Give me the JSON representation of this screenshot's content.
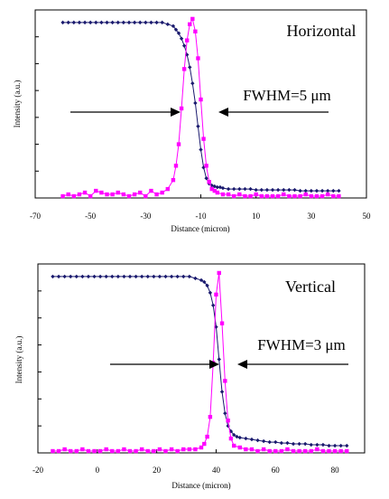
{
  "chart_data": [
    {
      "type": "line",
      "title": "Horizontal",
      "xlabel": "Distance (micron)",
      "ylabel": "Intensity (a.u.)",
      "xlim": [
        -70,
        50
      ],
      "ylim": [
        0,
        1.05
      ],
      "xticks": [
        -70,
        -50,
        -30,
        -10,
        10,
        30,
        50
      ],
      "yticks_labeled": false,
      "grid": false,
      "annotation": "FWHM=5 μm",
      "series": [
        {
          "color": "#1a1a6e",
          "marker": "diamond",
          "x": [
            -60,
            -58,
            -56,
            -54,
            -52,
            -50,
            -48,
            -46,
            -44,
            -42,
            -40,
            -38,
            -36,
            -34,
            -32,
            -30,
            -28,
            -26,
            -24,
            -22,
            -20,
            -19,
            -18,
            -17,
            -16,
            -15,
            -14,
            -13,
            -12,
            -11,
            -10,
            -9,
            -8,
            -7,
            -6,
            -5,
            -4,
            -3,
            -2,
            0,
            2,
            4,
            6,
            8,
            10,
            12,
            14,
            16,
            18,
            20,
            22,
            24,
            26,
            28,
            30,
            32,
            34,
            36,
            38,
            40
          ],
          "y": [
            0.98,
            0.98,
            0.98,
            0.98,
            0.98,
            0.98,
            0.98,
            0.98,
            0.98,
            0.98,
            0.98,
            0.98,
            0.98,
            0.98,
            0.98,
            0.98,
            0.98,
            0.98,
            0.98,
            0.97,
            0.96,
            0.94,
            0.92,
            0.89,
            0.85,
            0.8,
            0.73,
            0.64,
            0.53,
            0.4,
            0.27,
            0.17,
            0.11,
            0.08,
            0.07,
            0.065,
            0.06,
            0.06,
            0.055,
            0.05,
            0.05,
            0.05,
            0.05,
            0.05,
            0.045,
            0.045,
            0.045,
            0.045,
            0.045,
            0.045,
            0.045,
            0.045,
            0.04,
            0.04,
            0.04,
            0.04,
            0.04,
            0.04,
            0.04,
            0.04
          ]
        },
        {
          "color": "#ff00ff",
          "marker": "square",
          "x": [
            -60,
            -58,
            -56,
            -54,
            -52,
            -50,
            -48,
            -46,
            -44,
            -42,
            -40,
            -38,
            -36,
            -34,
            -32,
            -30,
            -28,
            -26,
            -24,
            -22,
            -20,
            -19,
            -18,
            -17,
            -16,
            -15,
            -14,
            -13,
            -12,
            -11,
            -10,
            -9,
            -8,
            -7,
            -6,
            -5,
            -4,
            -2,
            0,
            2,
            4,
            6,
            8,
            10,
            12,
            14,
            16,
            18,
            20,
            22,
            24,
            26,
            28,
            30,
            32,
            34,
            36,
            38,
            40
          ],
          "y": [
            0.01,
            0.02,
            0.01,
            0.02,
            0.03,
            0.01,
            0.04,
            0.03,
            0.02,
            0.02,
            0.03,
            0.02,
            0.01,
            0.02,
            0.03,
            0.01,
            0.04,
            0.02,
            0.03,
            0.05,
            0.1,
            0.18,
            0.3,
            0.5,
            0.72,
            0.88,
            0.97,
            1.0,
            0.93,
            0.78,
            0.55,
            0.33,
            0.18,
            0.09,
            0.05,
            0.04,
            0.03,
            0.02,
            0.02,
            0.01,
            0.02,
            0.01,
            0.01,
            0.02,
            0.01,
            0.01,
            0.01,
            0.01,
            0.02,
            0.01,
            0.01,
            0.01,
            0.02,
            0.01,
            0.01,
            0.01,
            0.02,
            0.01,
            0.01
          ]
        }
      ]
    },
    {
      "type": "line",
      "title": "Vertical",
      "xlabel": "Distance (micron)",
      "ylabel": "Intensity (a.u.)",
      "xlim": [
        -20,
        90
      ],
      "ylim": [
        0,
        1.05
      ],
      "xticks": [
        -20,
        0,
        20,
        40,
        60,
        80
      ],
      "yticks_labeled": false,
      "grid": false,
      "annotation": "FWHM=3 μm",
      "series": [
        {
          "color": "#1a1a6e",
          "marker": "diamond",
          "x": [
            -15,
            -13,
            -11,
            -9,
            -7,
            -5,
            -3,
            -1,
            1,
            3,
            5,
            7,
            9,
            11,
            13,
            15,
            17,
            19,
            21,
            23,
            25,
            27,
            29,
            31,
            33,
            35,
            36,
            37,
            38,
            39,
            40,
            41,
            42,
            43,
            44,
            45,
            46,
            47,
            48,
            50,
            52,
            54,
            56,
            58,
            60,
            62,
            64,
            66,
            68,
            70,
            72,
            74,
            76,
            78,
            80,
            82,
            84
          ],
          "y": [
            0.98,
            0.98,
            0.98,
            0.98,
            0.98,
            0.98,
            0.98,
            0.98,
            0.98,
            0.98,
            0.98,
            0.98,
            0.98,
            0.98,
            0.98,
            0.98,
            0.98,
            0.98,
            0.98,
            0.98,
            0.98,
            0.98,
            0.98,
            0.98,
            0.97,
            0.96,
            0.95,
            0.93,
            0.89,
            0.82,
            0.7,
            0.52,
            0.34,
            0.22,
            0.15,
            0.12,
            0.1,
            0.09,
            0.085,
            0.08,
            0.075,
            0.07,
            0.065,
            0.06,
            0.06,
            0.055,
            0.055,
            0.05,
            0.05,
            0.05,
            0.045,
            0.045,
            0.045,
            0.04,
            0.04,
            0.04,
            0.04
          ]
        },
        {
          "color": "#ff00ff",
          "marker": "square",
          "x": [
            -15,
            -13,
            -11,
            -9,
            -7,
            -5,
            -3,
            -1,
            1,
            3,
            5,
            7,
            9,
            11,
            13,
            15,
            17,
            19,
            21,
            23,
            25,
            27,
            29,
            31,
            33,
            35,
            36,
            37,
            38,
            39,
            40,
            41,
            42,
            43,
            44,
            45,
            46,
            48,
            50,
            52,
            54,
            56,
            58,
            60,
            62,
            64,
            66,
            68,
            70,
            72,
            74,
            76,
            78,
            80,
            82,
            84
          ],
          "y": [
            0.01,
            0.01,
            0.02,
            0.01,
            0.01,
            0.02,
            0.01,
            0.01,
            0.01,
            0.02,
            0.01,
            0.01,
            0.02,
            0.01,
            0.01,
            0.02,
            0.01,
            0.01,
            0.02,
            0.01,
            0.02,
            0.01,
            0.02,
            0.02,
            0.02,
            0.03,
            0.05,
            0.09,
            0.2,
            0.5,
            0.88,
            1.0,
            0.72,
            0.4,
            0.18,
            0.08,
            0.04,
            0.03,
            0.02,
            0.02,
            0.01,
            0.02,
            0.01,
            0.01,
            0.01,
            0.02,
            0.01,
            0.01,
            0.01,
            0.01,
            0.02,
            0.01,
            0.01,
            0.01,
            0.01,
            0.01
          ]
        }
      ]
    }
  ]
}
